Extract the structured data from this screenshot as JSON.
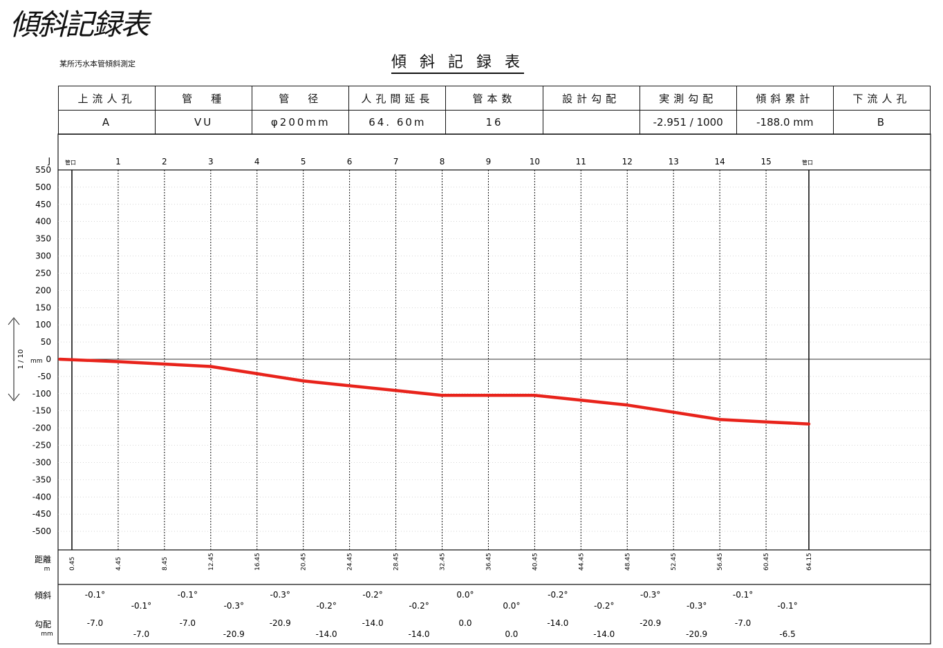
{
  "header": {
    "page_title": "傾斜記録表",
    "subtitle": "某所汚水本管傾斜測定",
    "center_title": "傾 斜 記 録 表"
  },
  "info_table": {
    "headers": [
      "上流人孔",
      "管　種",
      "管　径",
      "人孔間延長",
      "管本数",
      "設計勾配",
      "実測勾配",
      "傾斜累計",
      "下流人孔"
    ],
    "values": [
      "A",
      "VU",
      "φ200mm",
      "64. 60m",
      "16",
      "",
      "-2.951 / 1000",
      "-188.0 mm",
      "B"
    ]
  },
  "chart_data": {
    "type": "line",
    "y_axis_unit_label": "J",
    "y_axis_mm_label": "mm",
    "scale_label": "1 / 10",
    "ylim": [
      -550,
      550
    ],
    "yticks": [
      550,
      500,
      450,
      400,
      350,
      300,
      250,
      200,
      150,
      100,
      50,
      0,
      -50,
      -100,
      -150,
      -200,
      -250,
      -300,
      -350,
      -400,
      -450,
      -500
    ],
    "joint_labels": [
      "管口",
      "1",
      "2",
      "3",
      "4",
      "5",
      "6",
      "7",
      "8",
      "9",
      "10",
      "11",
      "12",
      "13",
      "14",
      "15",
      "管口"
    ],
    "distances": [
      "0.45",
      "4.45",
      "8.45",
      "12.45",
      "16.45",
      "20.45",
      "24.45",
      "28.45",
      "32.45",
      "36.45",
      "40.45",
      "44.45",
      "48.45",
      "52.45",
      "56.45",
      "60.45",
      "64.15"
    ],
    "distance_values": [
      0.45,
      4.45,
      8.45,
      12.45,
      16.45,
      20.45,
      24.45,
      28.45,
      32.45,
      36.45,
      40.45,
      44.45,
      48.45,
      52.45,
      56.45,
      60.45,
      64.15
    ],
    "profile_x": [
      -0.6,
      4.45,
      8.45,
      12.45,
      16.45,
      20.45,
      24.45,
      28.45,
      32.45,
      36.45,
      40.45,
      44.45,
      48.45,
      52.45,
      56.45,
      60.45,
      64.15
    ],
    "profile_y": [
      0,
      -7,
      -14,
      -21,
      -42,
      -63,
      -77,
      -91,
      -105,
      -105,
      -105,
      -119,
      -133,
      -154,
      -175,
      -182,
      -188
    ],
    "line_color": "#e8231b",
    "row_labels": {
      "distance": "距離",
      "distance_unit": "m",
      "slope": "傾斜",
      "gradient": "勾配",
      "gradient_unit": "mm"
    },
    "slopes": [
      "-0.1°",
      "-0.1°",
      "-0.1°",
      "-0.3°",
      "-0.3°",
      "-0.2°",
      "-0.2°",
      "-0.2°",
      "0.0°",
      "0.0°",
      "-0.2°",
      "-0.2°",
      "-0.3°",
      "-0.3°",
      "-0.1°",
      "-0.1°"
    ],
    "gradients": [
      "-7.0",
      "-7.0",
      "-7.0",
      "-20.9",
      "-20.9",
      "-14.0",
      "-14.0",
      "-14.0",
      "0.0",
      "0.0",
      "-14.0",
      "-14.0",
      "-20.9",
      "-20.9",
      "-7.0",
      "-6.5"
    ]
  }
}
